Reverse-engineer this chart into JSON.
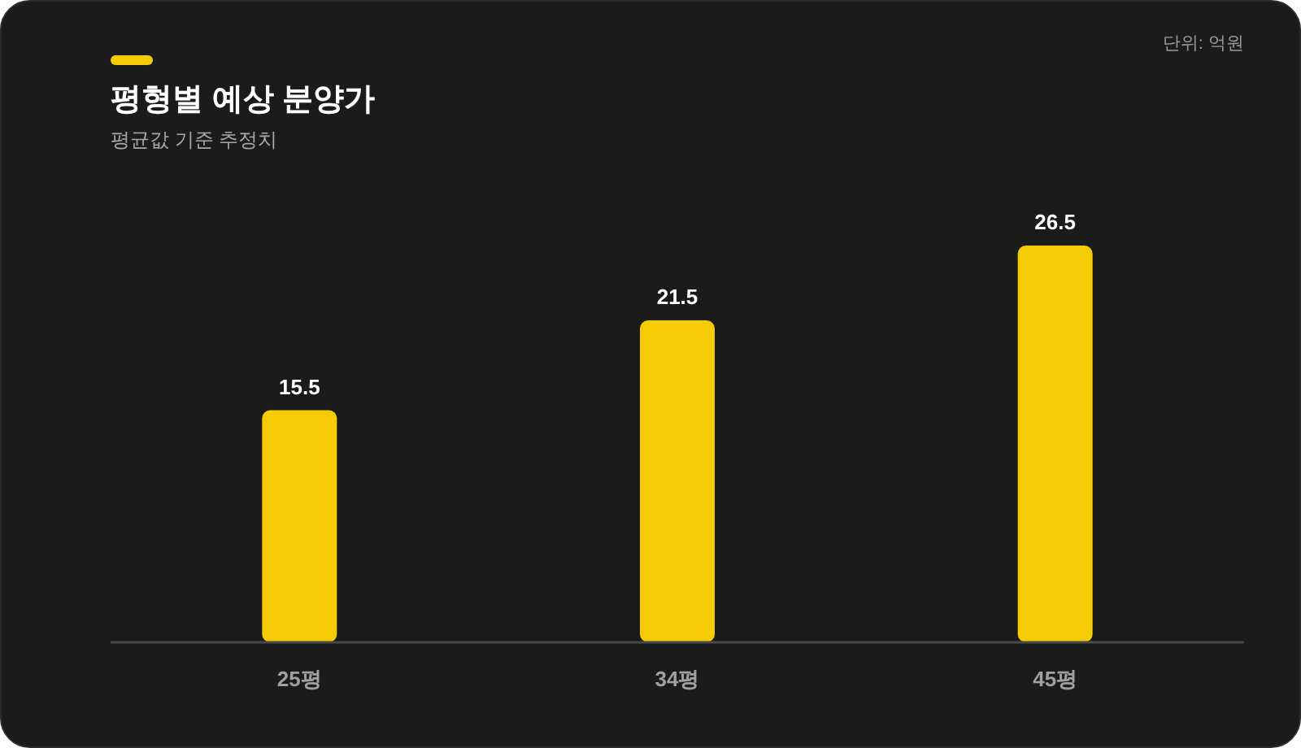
{
  "chart_data": {
    "type": "bar",
    "title": "평형별 예상 분양가",
    "subtitle": "평균값 기준 추정치",
    "annotations": [
      "단위: 억원"
    ],
    "categories": [
      "25평",
      "34평",
      "45평"
    ],
    "values": [
      15.5,
      21.5,
      26.5
    ],
    "color": "#f5cb05",
    "data_labels": true
  }
}
